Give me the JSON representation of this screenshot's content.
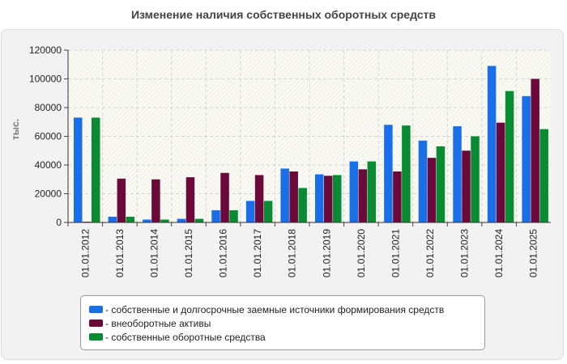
{
  "chart_data": {
    "type": "bar",
    "title": "Изменение наличия собственных оборотных средств",
    "xlabel": "",
    "ylabel": "тыс.",
    "ylim": [
      0,
      120000
    ],
    "yticks": [
      0,
      20000,
      40000,
      60000,
      80000,
      100000,
      120000
    ],
    "categories": [
      "01.01.2012",
      "01.01.2013",
      "01.01.2014",
      "01.01.2015",
      "01.01.2016",
      "01.01.2017",
      "01.01.2018",
      "01.01.2019",
      "01.01.2020",
      "01.01.2021",
      "01.01.2022",
      "01.01.2023",
      "01.01.2024",
      "01.01.2025"
    ],
    "series": [
      {
        "name": "- собственные и долгосрочные заемные источники формирования средств",
        "color": "#1a6fe8",
        "values": [
          73000,
          4000,
          2000,
          2500,
          8500,
          15000,
          37500,
          33500,
          42500,
          68000,
          57000,
          67000,
          109000,
          88000
        ]
      },
      {
        "name": "- внеоборотные активы",
        "color": "#6b0a3a",
        "values": [
          500,
          30500,
          30000,
          31500,
          34500,
          33000,
          35500,
          32500,
          37000,
          35500,
          45000,
          50000,
          69500,
          100000
        ]
      },
      {
        "name": "- собственные оборотные средства",
        "color": "#0a8a33",
        "values": [
          73000,
          4000,
          2000,
          2500,
          8500,
          15000,
          24000,
          33000,
          42500,
          67500,
          53000,
          60000,
          91500,
          65000
        ]
      }
    ],
    "grid": true,
    "legend_position": "bottom-center"
  }
}
